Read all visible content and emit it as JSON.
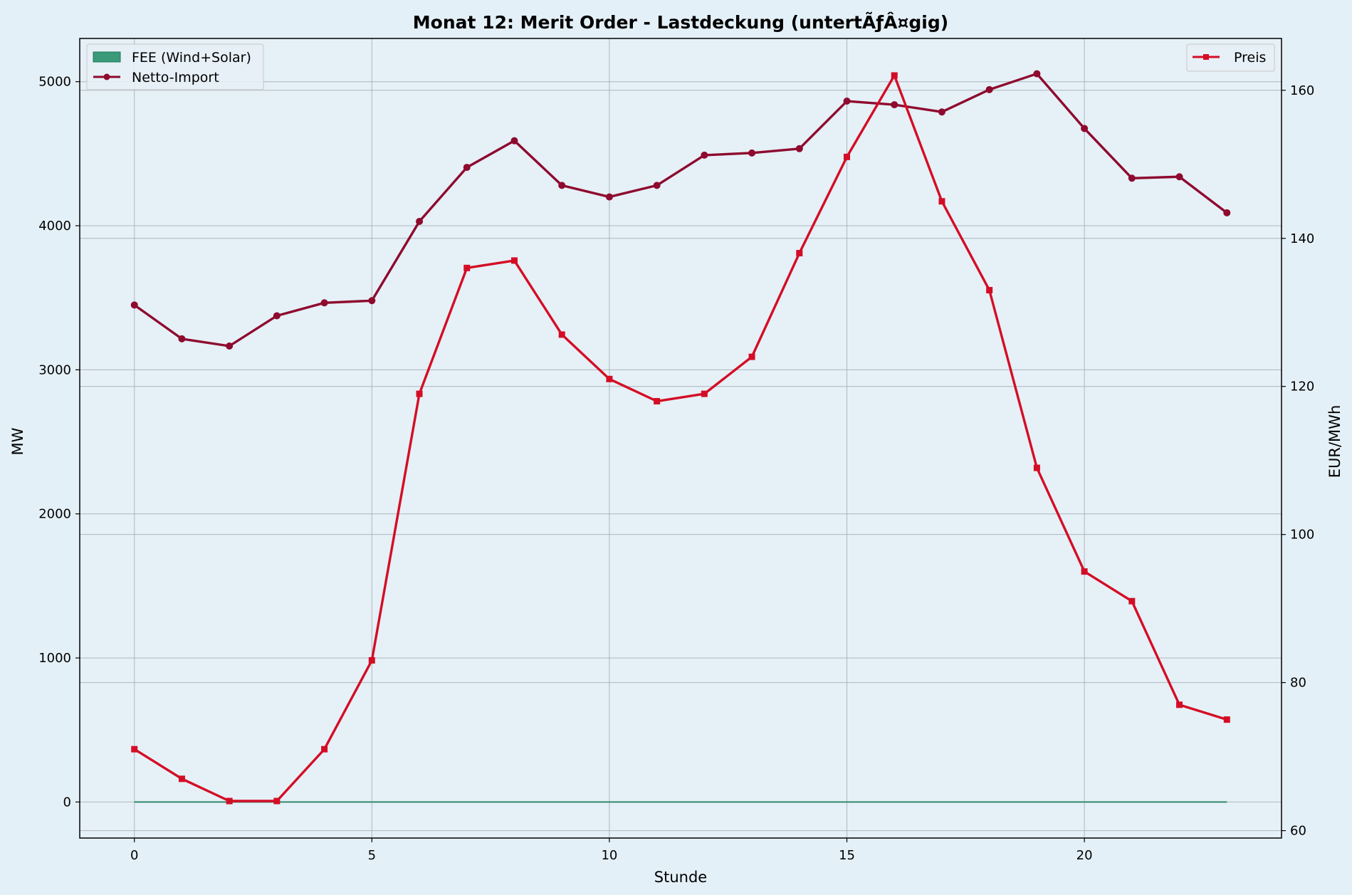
{
  "chart_data": {
    "type": "line",
    "title": "Monat 12: Merit Order - Lastdeckung (untertÃƒÂ¤gig)",
    "xlabel": "Stunde",
    "ylabel": "MW",
    "y2label": "EUR/MWh",
    "xlim": [
      -1.15,
      24.15
    ],
    "ylim": [
      -250,
      5300
    ],
    "y2lim": [
      59,
      167
    ],
    "xticks": [
      0,
      5,
      10,
      15,
      20
    ],
    "yticks": [
      0,
      1000,
      2000,
      3000,
      4000,
      5000
    ],
    "y2ticks": [
      60,
      80,
      100,
      120,
      140,
      160
    ],
    "grid": true,
    "legend_left": "top-left",
    "legend_right": "top-right",
    "x": [
      0,
      1,
      2,
      3,
      4,
      5,
      6,
      7,
      8,
      9,
      10,
      11,
      12,
      13,
      14,
      15,
      16,
      17,
      18,
      19,
      20,
      21,
      22,
      23
    ],
    "series": [
      {
        "name": "FEE (Wind+Solar)",
        "kind": "area",
        "axis": "left",
        "color": "#3a9a7a",
        "values": [
          0,
          0,
          0,
          0,
          0,
          0,
          0,
          0,
          0,
          0,
          0,
          0,
          0,
          0,
          0,
          0,
          0,
          0,
          0,
          0,
          0,
          0,
          0,
          0
        ]
      },
      {
        "name": "Netto-Import",
        "kind": "line",
        "axis": "left",
        "marker": "circle",
        "color": "#8e0a2e",
        "values": [
          3450,
          3215,
          3165,
          3375,
          3465,
          3480,
          4030,
          4405,
          4590,
          4280,
          4200,
          4280,
          4490,
          4505,
          4535,
          4865,
          4840,
          4790,
          4945,
          5055,
          4675,
          4330,
          4340,
          4090
        ]
      },
      {
        "name": "Preis",
        "kind": "line",
        "axis": "right",
        "marker": "square",
        "color": "#d40d25",
        "values": [
          71,
          67,
          64,
          64,
          71,
          83,
          119,
          136,
          137,
          127,
          121,
          118,
          119,
          124,
          138,
          151,
          162,
          145,
          133,
          109,
          95,
          91,
          77,
          75
        ]
      }
    ]
  }
}
